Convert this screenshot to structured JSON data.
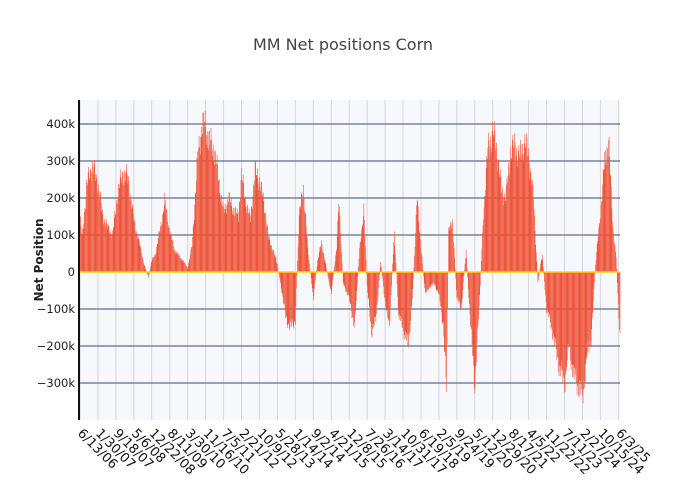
{
  "chart_data": {
    "type": "bar",
    "title": "MM Net positions Corn",
    "xlabel": "",
    "ylabel": "Net Position",
    "ylim": [
      -400000,
      465000
    ],
    "y_ticks": [
      -300000,
      -200000,
      -100000,
      0,
      100000,
      200000,
      300000,
      400000
    ],
    "y_tick_labels": [
      "−300k",
      "−200k",
      "−100k",
      "0",
      "100k",
      "200k",
      "300k",
      "400k"
    ],
    "x_range": [
      "2006-06-13",
      "2025-06-24"
    ],
    "x_tick_labels": [
      "6/13/06",
      "1/30/07",
      "9/18/07",
      "5/6/08",
      "12/22/08",
      "8/11/09",
      "3/30/10",
      "11/16/10",
      "7/5/11",
      "2/21/12",
      "10/9/12",
      "5/28/13",
      "1/14/14",
      "9/2/14",
      "4/21/15",
      "12/8/15",
      "7/26/16",
      "3/14/17",
      "10/31/17",
      "6/19/18",
      "2/5/19",
      "9/24/19",
      "5/12/20",
      "12/29/20",
      "8/17/21",
      "4/5/22",
      "11/22/22",
      "7/11/23",
      "2/27/24",
      "10/15/24",
      "6/3/25"
    ],
    "grid": true,
    "bar_color": "#EF553B",
    "zero_line_color": "#FFD700",
    "series": [
      {
        "values": [
          {
            "date": "2006-06-13",
            "value": 150000
          },
          {
            "date": "2006-07-11",
            "value": 90000
          },
          {
            "date": "2006-09-05",
            "value": 230000
          },
          {
            "date": "2006-11-14",
            "value": 290000
          },
          {
            "date": "2007-01-30",
            "value": 240000
          },
          {
            "date": "2007-04-03",
            "value": 150000
          },
          {
            "date": "2007-06-05",
            "value": 120000
          },
          {
            "date": "2007-08-07",
            "value": 100000
          },
          {
            "date": "2007-10-09",
            "value": 210000
          },
          {
            "date": "2007-12-18",
            "value": 270000
          },
          {
            "date": "2008-02-26",
            "value": 250000
          },
          {
            "date": "2008-05-06",
            "value": 140000
          },
          {
            "date": "2008-07-15",
            "value": 80000
          },
          {
            "date": "2008-09-16",
            "value": 20000
          },
          {
            "date": "2008-11-11",
            "value": -15000
          },
          {
            "date": "2008-12-22",
            "value": 30000
          },
          {
            "date": "2009-02-10",
            "value": 50000
          },
          {
            "date": "2009-04-14",
            "value": 120000
          },
          {
            "date": "2009-06-09",
            "value": 190000
          },
          {
            "date": "2009-08-11",
            "value": 110000
          },
          {
            "date": "2009-10-13",
            "value": 60000
          },
          {
            "date": "2009-12-22",
            "value": 40000
          },
          {
            "date": "2010-02-02",
            "value": 30000
          },
          {
            "date": "2010-03-30",
            "value": 10000
          },
          {
            "date": "2010-05-25",
            "value": 70000
          },
          {
            "date": "2010-08-03",
            "value": 300000
          },
          {
            "date": "2010-09-28",
            "value": 400000
          },
          {
            "date": "2010-11-16",
            "value": 390000
          },
          {
            "date": "2011-01-11",
            "value": 350000
          },
          {
            "date": "2011-03-08",
            "value": 330000
          },
          {
            "date": "2011-05-10",
            "value": 240000
          },
          {
            "date": "2011-07-05",
            "value": 160000
          },
          {
            "date": "2011-09-06",
            "value": 200000
          },
          {
            "date": "2011-11-08",
            "value": 170000
          },
          {
            "date": "2012-01-10",
            "value": 150000
          },
          {
            "date": "2012-02-21",
            "value": 260000
          },
          {
            "date": "2012-04-17",
            "value": 190000
          },
          {
            "date": "2012-06-12",
            "value": 140000
          },
          {
            "date": "2012-08-14",
            "value": 270000
          },
          {
            "date": "2012-10-09",
            "value": 250000
          },
          {
            "date": "2012-12-11",
            "value": 180000
          },
          {
            "date": "2013-02-05",
            "value": 90000
          },
          {
            "date": "2013-04-02",
            "value": 60000
          },
          {
            "date": "2013-05-28",
            "value": 20000
          },
          {
            "date": "2013-07-16",
            "value": -40000
          },
          {
            "date": "2013-09-10",
            "value": -120000
          },
          {
            "date": "2013-11-05",
            "value": -150000
          },
          {
            "date": "2014-01-14",
            "value": -130000
          },
          {
            "date": "2014-03-04",
            "value": 150000
          },
          {
            "date": "2014-04-29",
            "value": 230000
          },
          {
            "date": "2014-06-24",
            "value": 60000
          },
          {
            "date": "2014-09-02",
            "value": -70000
          },
          {
            "date": "2014-10-28",
            "value": 30000
          },
          {
            "date": "2014-12-16",
            "value": 80000
          },
          {
            "date": "2015-02-10",
            "value": 20000
          },
          {
            "date": "2015-04-21",
            "value": -60000
          },
          {
            "date": "2015-06-30",
            "value": 70000
          },
          {
            "date": "2015-07-28",
            "value": 190000
          },
          {
            "date": "2015-09-22",
            "value": -30000
          },
          {
            "date": "2015-12-08",
            "value": -70000
          },
          {
            "date": "2016-02-16",
            "value": -150000
          },
          {
            "date": "2016-04-19",
            "value": 60000
          },
          {
            "date": "2016-06-14",
            "value": 170000
          },
          {
            "date": "2016-07-26",
            "value": -40000
          },
          {
            "date": "2016-09-20",
            "value": -160000
          },
          {
            "date": "2016-11-15",
            "value": -130000
          },
          {
            "date": "2017-01-17",
            "value": 30000
          },
          {
            "date": "2017-03-14",
            "value": -80000
          },
          {
            "date": "2017-05-09",
            "value": -150000
          },
          {
            "date": "2017-07-11",
            "value": 110000
          },
          {
            "date": "2017-09-05",
            "value": -120000
          },
          {
            "date": "2017-10-31",
            "value": -150000
          },
          {
            "date": "2018-01-09",
            "value": -200000
          },
          {
            "date": "2018-03-06",
            "value": -50000
          },
          {
            "date": "2018-05-01",
            "value": 200000
          },
          {
            "date": "2018-06-19",
            "value": 70000
          },
          {
            "date": "2018-08-14",
            "value": -60000
          },
          {
            "date": "2018-10-09",
            "value": -40000
          },
          {
            "date": "2018-12-04",
            "value": -30000
          },
          {
            "date": "2019-02-05",
            "value": -60000
          },
          {
            "date": "2019-04-02",
            "value": -140000
          },
          {
            "date": "2019-05-14",
            "value": -320000
          },
          {
            "date": "2019-06-11",
            "value": 110000
          },
          {
            "date": "2019-07-30",
            "value": 140000
          },
          {
            "date": "2019-09-24",
            "value": -70000
          },
          {
            "date": "2019-11-19",
            "value": -100000
          },
          {
            "date": "2020-01-21",
            "value": 60000
          },
          {
            "date": "2020-03-17",
            "value": -140000
          },
          {
            "date": "2020-05-12",
            "value": -300000
          },
          {
            "date": "2020-07-07",
            "value": -100000
          },
          {
            "date": "2020-09-01",
            "value": 160000
          },
          {
            "date": "2020-10-27",
            "value": 330000
          },
          {
            "date": "2020-12-29",
            "value": 380000
          },
          {
            "date": "2021-02-23",
            "value": 330000
          },
          {
            "date": "2021-04-20",
            "value": 220000
          },
          {
            "date": "2021-06-15",
            "value": 200000
          },
          {
            "date": "2021-08-17",
            "value": 330000
          },
          {
            "date": "2021-10-12",
            "value": 340000
          },
          {
            "date": "2021-12-07",
            "value": 310000
          },
          {
            "date": "2022-02-08",
            "value": 350000
          },
          {
            "date": "2022-04-05",
            "value": 320000
          },
          {
            "date": "2022-06-07",
            "value": 200000
          },
          {
            "date": "2022-08-02",
            "value": -30000
          },
          {
            "date": "2022-09-27",
            "value": 50000
          },
          {
            "date": "2022-11-22",
            "value": -100000
          },
          {
            "date": "2023-01-17",
            "value": -140000
          },
          {
            "date": "2023-03-14",
            "value": -200000
          },
          {
            "date": "2023-05-09",
            "value": -260000
          },
          {
            "date": "2023-07-11",
            "value": -300000
          },
          {
            "date": "2023-09-05",
            "value": -200000
          },
          {
            "date": "2023-11-07",
            "value": -280000
          },
          {
            "date": "2024-01-16",
            "value": -310000
          },
          {
            "date": "2024-02-27",
            "value": -340000
          },
          {
            "date": "2024-04-23",
            "value": -230000
          },
          {
            "date": "2024-06-18",
            "value": -180000
          },
          {
            "date": "2024-08-13",
            "value": 20000
          },
          {
            "date": "2024-10-15",
            "value": 160000
          },
          {
            "date": "2024-12-10",
            "value": 300000
          },
          {
            "date": "2025-01-28",
            "value": 360000
          },
          {
            "date": "2025-03-25",
            "value": 120000
          },
          {
            "date": "2025-05-06",
            "value": 40000
          },
          {
            "date": "2025-06-24",
            "value": -190000
          }
        ]
      }
    ]
  }
}
